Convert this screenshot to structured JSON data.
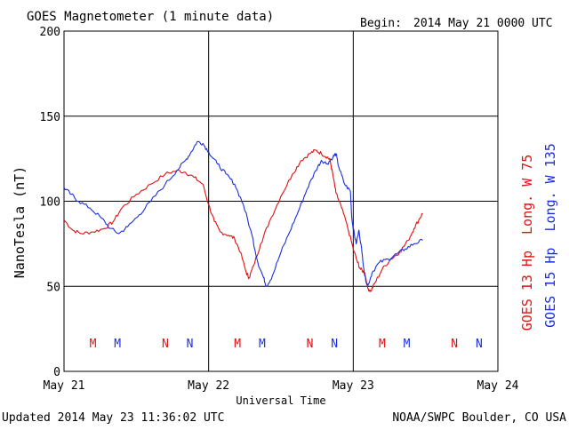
{
  "header": {
    "title": "GOES Magnetometer (1 minute data)",
    "begin_label": "Begin:",
    "begin_value": "2014 May 21 0000 UTC"
  },
  "footer": {
    "updated": "Updated 2014 May 23 11:36:02 UTC",
    "credit": "NOAA/SWPC Boulder, CO USA"
  },
  "colors": {
    "goes13": "#e01010",
    "goes15": "#1a2fe0",
    "grid": "#000000"
  },
  "chart_data": {
    "type": "line",
    "title": "GOES Magnetometer (1 minute data)",
    "xlabel": "Universal Time",
    "ylabel": "NanoTesla (nT)",
    "xlim": [
      "2014-05-21",
      "2014-05-24"
    ],
    "ylim": [
      0,
      200
    ],
    "yticks": [
      0,
      50,
      100,
      150,
      200
    ],
    "xticks": [
      {
        "day": 0,
        "label": "May 21"
      },
      {
        "day": 1,
        "label": "May 22"
      },
      {
        "day": 2,
        "label": "May 23"
      },
      {
        "day": 3,
        "label": "May 24"
      }
    ],
    "grid": true,
    "series": [
      {
        "name": "GOES 13 Hp",
        "label_suffix": "Long. W 75",
        "color": "#e01010",
        "points": [
          [
            0.0,
            89
          ],
          [
            0.06,
            83
          ],
          [
            0.12,
            81
          ],
          [
            0.2,
            82
          ],
          [
            0.28,
            84
          ],
          [
            0.34,
            88
          ],
          [
            0.4,
            96
          ],
          [
            0.5,
            104
          ],
          [
            0.6,
            110
          ],
          [
            0.7,
            116
          ],
          [
            0.78,
            118
          ],
          [
            0.84,
            117
          ],
          [
            0.9,
            114
          ],
          [
            0.96,
            110
          ],
          [
            1.0,
            98
          ],
          [
            1.04,
            88
          ],
          [
            1.08,
            82
          ],
          [
            1.14,
            80
          ],
          [
            1.18,
            78
          ],
          [
            1.22,
            70
          ],
          [
            1.26,
            58
          ],
          [
            1.28,
            55
          ],
          [
            1.31,
            62
          ],
          [
            1.36,
            75
          ],
          [
            1.42,
            88
          ],
          [
            1.5,
            103
          ],
          [
            1.58,
            116
          ],
          [
            1.64,
            124
          ],
          [
            1.7,
            128
          ],
          [
            1.74,
            130
          ],
          [
            1.78,
            128
          ],
          [
            1.82,
            126
          ],
          [
            1.84,
            124
          ],
          [
            1.86,
            115
          ],
          [
            1.88,
            105
          ],
          [
            1.92,
            96
          ],
          [
            1.96,
            85
          ],
          [
            2.0,
            72
          ],
          [
            2.03,
            64
          ],
          [
            2.05,
            60
          ],
          [
            2.08,
            58
          ],
          [
            2.1,
            49
          ],
          [
            2.12,
            47
          ],
          [
            2.15,
            52
          ],
          [
            2.2,
            60
          ],
          [
            2.26,
            66
          ],
          [
            2.32,
            70
          ],
          [
            2.38,
            77
          ],
          [
            2.42,
            84
          ],
          [
            2.46,
            90
          ],
          [
            2.48,
            93
          ]
        ]
      },
      {
        "name": "GOES 15 Hp",
        "label_suffix": "Long. W 135",
        "color": "#1a2fe0",
        "points": [
          [
            0.0,
            108
          ],
          [
            0.05,
            104
          ],
          [
            0.1,
            100
          ],
          [
            0.18,
            96
          ],
          [
            0.26,
            90
          ],
          [
            0.32,
            84
          ],
          [
            0.38,
            81
          ],
          [
            0.44,
            85
          ],
          [
            0.52,
            92
          ],
          [
            0.6,
            100
          ],
          [
            0.7,
            110
          ],
          [
            0.78,
            118
          ],
          [
            0.84,
            124
          ],
          [
            0.88,
            129
          ],
          [
            0.92,
            135
          ],
          [
            0.96,
            134
          ],
          [
            1.0,
            129
          ],
          [
            1.06,
            122
          ],
          [
            1.12,
            116
          ],
          [
            1.18,
            110
          ],
          [
            1.24,
            98
          ],
          [
            1.3,
            80
          ],
          [
            1.34,
            64
          ],
          [
            1.38,
            55
          ],
          [
            1.4,
            50
          ],
          [
            1.44,
            56
          ],
          [
            1.5,
            70
          ],
          [
            1.56,
            82
          ],
          [
            1.62,
            94
          ],
          [
            1.68,
            107
          ],
          [
            1.74,
            118
          ],
          [
            1.78,
            124
          ],
          [
            1.82,
            122
          ],
          [
            1.86,
            126
          ],
          [
            1.88,
            128
          ],
          [
            1.9,
            120
          ],
          [
            1.94,
            110
          ],
          [
            1.98,
            106
          ],
          [
            1.99,
            90
          ],
          [
            2.0,
            84
          ],
          [
            2.02,
            75
          ],
          [
            2.04,
            83
          ],
          [
            2.06,
            70
          ],
          [
            2.08,
            56
          ],
          [
            2.1,
            50
          ],
          [
            2.13,
            58
          ],
          [
            2.18,
            64
          ],
          [
            2.24,
            66
          ],
          [
            2.3,
            69
          ],
          [
            2.36,
            72
          ],
          [
            2.42,
            75
          ],
          [
            2.48,
            77
          ]
        ]
      }
    ],
    "markers": [
      {
        "text": "M",
        "day": 0.2,
        "color": "#e01010"
      },
      {
        "text": "M",
        "day": 0.37,
        "color": "#1a2fe0"
      },
      {
        "text": "N",
        "day": 0.7,
        "color": "#e01010"
      },
      {
        "text": "N",
        "day": 0.87,
        "color": "#1a2fe0"
      },
      {
        "text": "M",
        "day": 1.2,
        "color": "#e01010"
      },
      {
        "text": "M",
        "day": 1.37,
        "color": "#1a2fe0"
      },
      {
        "text": "N",
        "day": 1.7,
        "color": "#e01010"
      },
      {
        "text": "N",
        "day": 1.87,
        "color": "#1a2fe0"
      },
      {
        "text": "M",
        "day": 2.2,
        "color": "#e01010"
      },
      {
        "text": "M",
        "day": 2.37,
        "color": "#1a2fe0"
      },
      {
        "text": "N",
        "day": 2.7,
        "color": "#e01010"
      },
      {
        "text": "N",
        "day": 2.87,
        "color": "#1a2fe0"
      }
    ]
  }
}
